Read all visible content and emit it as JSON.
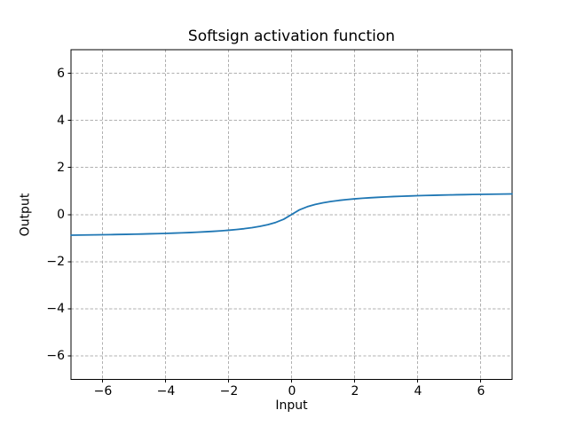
{
  "chart_data": {
    "type": "line",
    "title": "Softsign activation function",
    "xlabel": "Input",
    "ylabel": "Output",
    "xlim": [
      -7,
      7
    ],
    "ylim": [
      -7,
      7
    ],
    "xticks": [
      -6,
      -4,
      -2,
      0,
      2,
      4,
      6
    ],
    "yticks": [
      -6,
      -4,
      -2,
      0,
      2,
      4,
      6
    ],
    "xtick_labels": [
      "−6",
      "−4",
      "−2",
      "0",
      "2",
      "4",
      "6"
    ],
    "ytick_labels": [
      "−6",
      "−4",
      "−2",
      "0",
      "2",
      "4",
      "6"
    ],
    "grid": true,
    "grid_linestyle": "dashed",
    "grid_color": "#b0b0b0",
    "spine_color": "#000000",
    "background_color": "#ffffff",
    "legend": "none",
    "series": [
      {
        "name": "softsign",
        "color": "#1f77b4",
        "x": [
          -7,
          -6.75,
          -6.5,
          -6.25,
          -6,
          -5.75,
          -5.5,
          -5.25,
          -5,
          -4.75,
          -4.5,
          -4.25,
          -4,
          -3.75,
          -3.5,
          -3.25,
          -3,
          -2.75,
          -2.5,
          -2.25,
          -2,
          -1.75,
          -1.5,
          -1.25,
          -1,
          -0.75,
          -0.5,
          -0.25,
          0,
          0.25,
          0.5,
          0.75,
          1,
          1.25,
          1.5,
          1.75,
          2,
          2.25,
          2.5,
          2.75,
          3,
          3.25,
          3.5,
          3.75,
          4,
          4.25,
          4.5,
          4.75,
          5,
          5.25,
          5.5,
          5.75,
          6,
          6.25,
          6.5,
          6.75,
          7
        ],
        "y": [
          -0.875,
          -0.871,
          -0.8667,
          -0.8621,
          -0.8571,
          -0.8519,
          -0.8462,
          -0.84,
          -0.8333,
          -0.8261,
          -0.8182,
          -0.8095,
          -0.8,
          -0.7895,
          -0.7778,
          -0.7647,
          -0.75,
          -0.7333,
          -0.7143,
          -0.6923,
          -0.6667,
          -0.6364,
          -0.6,
          -0.5556,
          -0.5,
          -0.4286,
          -0.3333,
          -0.2,
          0,
          0.2,
          0.3333,
          0.4286,
          0.5,
          0.5556,
          0.6,
          0.6364,
          0.6667,
          0.6923,
          0.7143,
          0.7333,
          0.75,
          0.7647,
          0.7778,
          0.7895,
          0.8,
          0.8095,
          0.8182,
          0.8261,
          0.8333,
          0.84,
          0.8462,
          0.8519,
          0.8571,
          0.8621,
          0.8667,
          0.871,
          0.875
        ]
      }
    ]
  }
}
